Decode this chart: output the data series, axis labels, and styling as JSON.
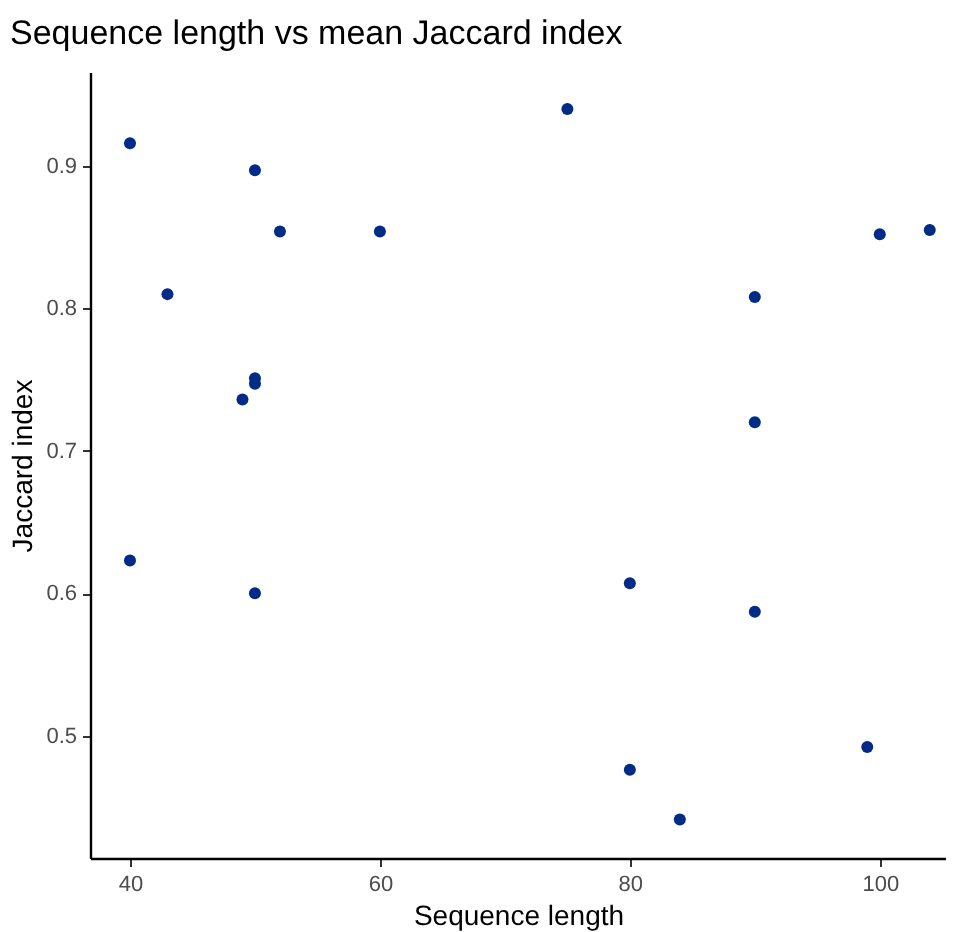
{
  "chart_data": {
    "type": "scatter",
    "title": "Sequence length vs mean Jaccard index",
    "xlabel": "Sequence length",
    "ylabel": "Jaccard index",
    "x": [
      40,
      43,
      50,
      52,
      60,
      75,
      49,
      50,
      50,
      90,
      90,
      100,
      104,
      40,
      50,
      80,
      90,
      80,
      84,
      99
    ],
    "series": [
      {
        "color": "#002b87",
        "values": [
          0.916,
          0.81,
          0.897,
          0.854,
          0.854,
          0.94,
          0.736,
          0.751,
          0.747,
          0.808,
          0.72,
          0.852,
          0.855,
          0.623,
          0.6,
          0.607,
          0.587,
          0.476,
          0.441,
          0.492
        ]
      }
    ],
    "xlim": [
      36.8,
      105.3
    ],
    "ylim": [
      0.414,
      0.966
    ],
    "xticks": [
      40,
      60,
      80,
      100
    ],
    "yticks": [
      0.5,
      0.6,
      0.7,
      0.8,
      0.9
    ],
    "grid": false,
    "marker": "circle"
  }
}
